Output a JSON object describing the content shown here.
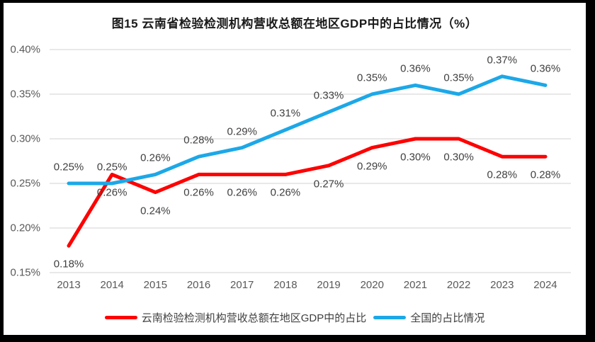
{
  "chart_data": {
    "type": "line",
    "title": "图15 云南省检验检测机构营收总额在地区GDP中的占比情况（%）",
    "categories": [
      "2013",
      "2014",
      "2015",
      "2016",
      "2017",
      "2018",
      "2019",
      "2020",
      "2021",
      "2022",
      "2023",
      "2024"
    ],
    "series": [
      {
        "id": "yunnan",
        "name": "云南检验检测机构营收总额在地区GDP中的占比",
        "color": "#FE0000",
        "values": [
          0.18,
          0.26,
          0.24,
          0.26,
          0.26,
          0.26,
          0.27,
          0.29,
          0.3,
          0.3,
          0.28,
          0.28
        ],
        "data_labels": [
          "0.18%",
          "0.26%",
          "0.24%",
          "0.26%",
          "0.26%",
          "0.26%",
          "0.27%",
          "0.29%",
          "0.30%",
          "0.30%",
          "0.28%",
          "0.28%"
        ],
        "label_position": "below"
      },
      {
        "id": "national",
        "name": "全国的占比情况",
        "color": "#1CA8E8",
        "values": [
          0.25,
          0.25,
          0.26,
          0.28,
          0.29,
          0.31,
          0.33,
          0.35,
          0.36,
          0.35,
          0.37,
          0.36
        ],
        "data_labels": [
          "0.25%",
          "0.25%",
          "0.26%",
          "0.28%",
          "0.29%",
          "0.31%",
          "0.33%",
          "0.35%",
          "0.36%",
          "0.35%",
          "0.37%",
          "0.36%"
        ],
        "label_position": "above"
      }
    ],
    "xlabel": "",
    "ylabel": "",
    "ylim": [
      0.15,
      0.4
    ],
    "y_ticks": [
      "0.40%",
      "0.35%",
      "0.30%",
      "0.25%",
      "0.20%",
      "0.15%"
    ],
    "grid": true,
    "legend_position": "bottom",
    "colors": {
      "grid": "#D9D9D9",
      "axis_text": "#595959",
      "data_label_text": "#3f3f3f",
      "background": "#FFFFFF",
      "frame_border": "#000000"
    }
  }
}
